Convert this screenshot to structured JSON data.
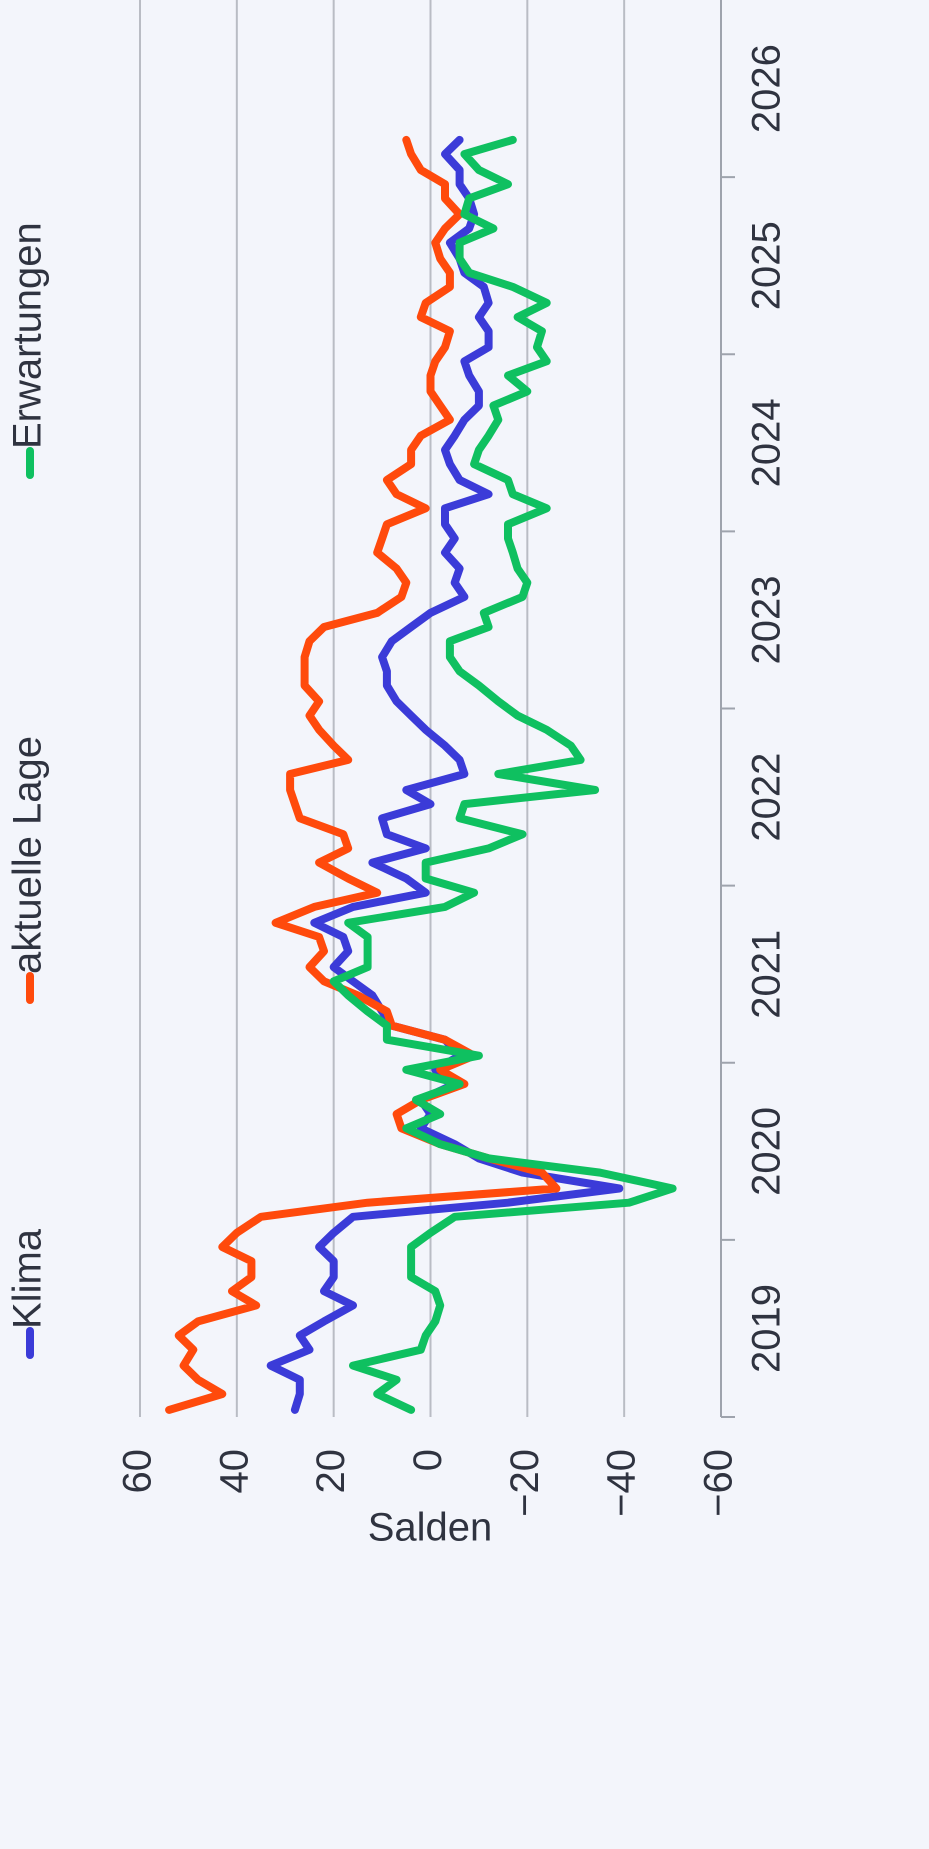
{
  "chart_data": {
    "type": "line",
    "ylabel": "Salden",
    "x": [
      2019.04,
      2019.13,
      2019.21,
      2019.29,
      2019.38,
      2019.46,
      2019.54,
      2019.63,
      2019.71,
      2019.79,
      2019.88,
      2019.96,
      2020.04,
      2020.13,
      2020.21,
      2020.29,
      2020.38,
      2020.46,
      2020.54,
      2020.63,
      2020.71,
      2020.79,
      2020.88,
      2020.96,
      2021.04,
      2021.13,
      2021.21,
      2021.29,
      2021.38,
      2021.46,
      2021.54,
      2021.63,
      2021.71,
      2021.79,
      2021.88,
      2021.96,
      2022.04,
      2022.13,
      2022.21,
      2022.29,
      2022.38,
      2022.46,
      2022.54,
      2022.63,
      2022.71,
      2022.79,
      2022.88,
      2022.96,
      2023.04,
      2023.13,
      2023.21,
      2023.29,
      2023.38,
      2023.46,
      2023.54,
      2023.63,
      2023.71,
      2023.79,
      2023.88,
      2023.96,
      2024.04,
      2024.13,
      2024.21,
      2024.29,
      2024.38,
      2024.46,
      2024.54,
      2024.63,
      2024.71,
      2024.79,
      2024.88,
      2024.96,
      2025.04,
      2025.13,
      2025.21,
      2025.29,
      2025.38,
      2025.46,
      2025.54,
      2025.63,
      2025.71,
      2025.79,
      2025.88,
      2025.96,
      2026.04,
      2026.13,
      2026.21
    ],
    "series": [
      {
        "name": "Klima",
        "color": "#3b3bd8",
        "values": [
          28,
          27,
          27,
          33,
          25,
          27,
          22,
          16,
          22,
          20,
          20,
          23,
          20,
          16,
          -16,
          -39,
          -19,
          -10,
          -5,
          2,
          0,
          2,
          -5,
          -1,
          -6,
          -3,
          8,
          10,
          12,
          16,
          20,
          17,
          18,
          24,
          16,
          1,
          5,
          12,
          1,
          9,
          10,
          0,
          5,
          -7,
          -6,
          -3,
          1,
          4,
          7,
          9,
          9,
          10,
          8,
          4,
          0,
          -7,
          -5,
          -6,
          -3,
          -5,
          -3,
          -3,
          -12,
          -6,
          -4,
          -3,
          -5,
          -7,
          -10,
          -10,
          -8,
          -7,
          -12,
          -12,
          -10,
          -12,
          -11,
          -7,
          -6,
          -4,
          -8,
          -9,
          -8,
          -6,
          -6,
          -3,
          -6
        ]
      },
      {
        "name": "aktuelle Lage",
        "color": "#ff4a0c",
        "values": [
          54,
          43,
          48,
          51,
          49,
          52,
          48,
          36,
          41,
          37,
          37,
          43,
          40,
          35,
          13,
          -26,
          -23,
          -12,
          -2,
          6,
          7,
          2,
          -7,
          -2,
          -9,
          -3,
          8,
          9,
          15,
          22,
          25,
          22,
          23,
          32,
          24,
          11,
          17,
          23,
          17,
          18,
          27,
          28,
          29,
          29,
          17,
          20,
          23,
          25,
          23,
          26,
          26,
          26,
          25,
          22,
          11,
          6,
          5,
          7,
          11,
          10,
          9,
          1,
          7,
          9,
          4,
          4,
          2,
          -4,
          -2,
          0,
          0,
          -1,
          -3,
          -4,
          2,
          1,
          -4,
          -4,
          -2,
          -1,
          -3,
          -6,
          -3,
          -3,
          2,
          4,
          5
        ]
      },
      {
        "name": "Erwartungen",
        "color": "#0fc060",
        "values": [
          4,
          11,
          7,
          16,
          2,
          1,
          -1,
          -2,
          -1,
          4,
          4,
          4,
          0,
          -5,
          -41,
          -50,
          -35,
          -12,
          -2,
          5,
          -2,
          3,
          -6,
          5,
          -10,
          9,
          9,
          13,
          17,
          20,
          13,
          13,
          13,
          17,
          -3,
          -9,
          1,
          1,
          -12,
          -19,
          -6,
          -7,
          -34,
          -14,
          -31,
          -29,
          -24,
          -18,
          -14,
          -10,
          -6,
          -4,
          -4,
          -12,
          -11,
          -19,
          -20,
          -18,
          -17,
          -16,
          -16,
          -24,
          -17,
          -16,
          -9,
          -10,
          -12,
          -14,
          -13,
          -20,
          -16,
          -24,
          -22,
          -23,
          -18,
          -24,
          -17,
          -8,
          -6,
          -6,
          -13,
          -7,
          -8,
          -16,
          -10,
          -7,
          -17
        ]
      }
    ],
    "xlim": [
      2019,
      2027
    ],
    "xticks": [
      2019,
      2020,
      2021,
      2022,
      2023,
      2024,
      2025,
      2026
    ],
    "ylim": [
      -60,
      60
    ],
    "yticks": [
      {
        "value": -60,
        "label": "−60"
      },
      {
        "value": -40,
        "label": "−40"
      },
      {
        "value": -20,
        "label": "−20"
      },
      0,
      20,
      40,
      60
    ],
    "grid": true
  }
}
